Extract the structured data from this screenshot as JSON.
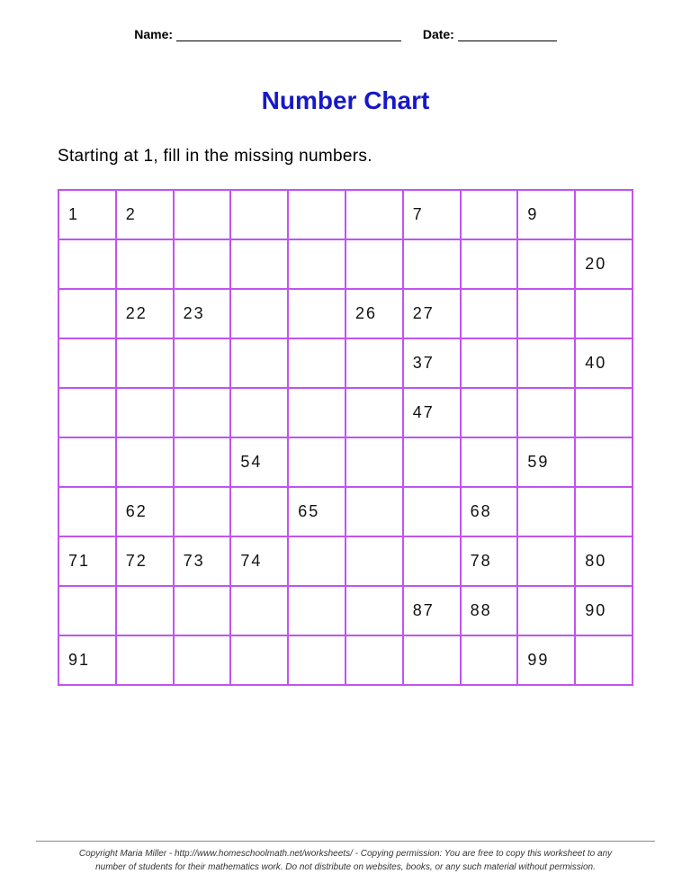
{
  "header": {
    "name_label": "Name:",
    "date_label": "Date:"
  },
  "title": {
    "text": "Number Chart",
    "color": "#1818c8"
  },
  "instruction": "Starting at 1, fill in the missing numbers.",
  "chart": {
    "type": "table",
    "columns": 10,
    "rows_count": 10,
    "border_color": "#c154f0",
    "cell_text_color": "#111111",
    "cell_fontsize": 18,
    "rows": [
      [
        "1",
        "2",
        "",
        "",
        "",
        "",
        "7",
        "",
        "9",
        ""
      ],
      [
        "",
        "",
        "",
        "",
        "",
        "",
        "",
        "",
        "",
        "20"
      ],
      [
        "",
        "22",
        "23",
        "",
        "",
        "26",
        "27",
        "",
        "",
        ""
      ],
      [
        "",
        "",
        "",
        "",
        "",
        "",
        "37",
        "",
        "",
        "40"
      ],
      [
        "",
        "",
        "",
        "",
        "",
        "",
        "47",
        "",
        "",
        ""
      ],
      [
        "",
        "",
        "",
        "54",
        "",
        "",
        "",
        "",
        "59",
        ""
      ],
      [
        "",
        "62",
        "",
        "",
        "65",
        "",
        "",
        "68",
        "",
        ""
      ],
      [
        "71",
        "72",
        "73",
        "74",
        "",
        "",
        "",
        "78",
        "",
        "80"
      ],
      [
        "",
        "",
        "",
        "",
        "",
        "",
        "87",
        "88",
        "",
        "90"
      ],
      [
        "91",
        "",
        "",
        "",
        "",
        "",
        "",
        "",
        "99",
        ""
      ]
    ]
  },
  "footer": {
    "line1": "Copyright Maria Miller - http://www.homeschoolmath.net/worksheets/ - Copying permission: You are free to copy this worksheet to any",
    "line2": "number of students for their mathematics work. Do not distribute on websites, books, or any such material without permission."
  }
}
